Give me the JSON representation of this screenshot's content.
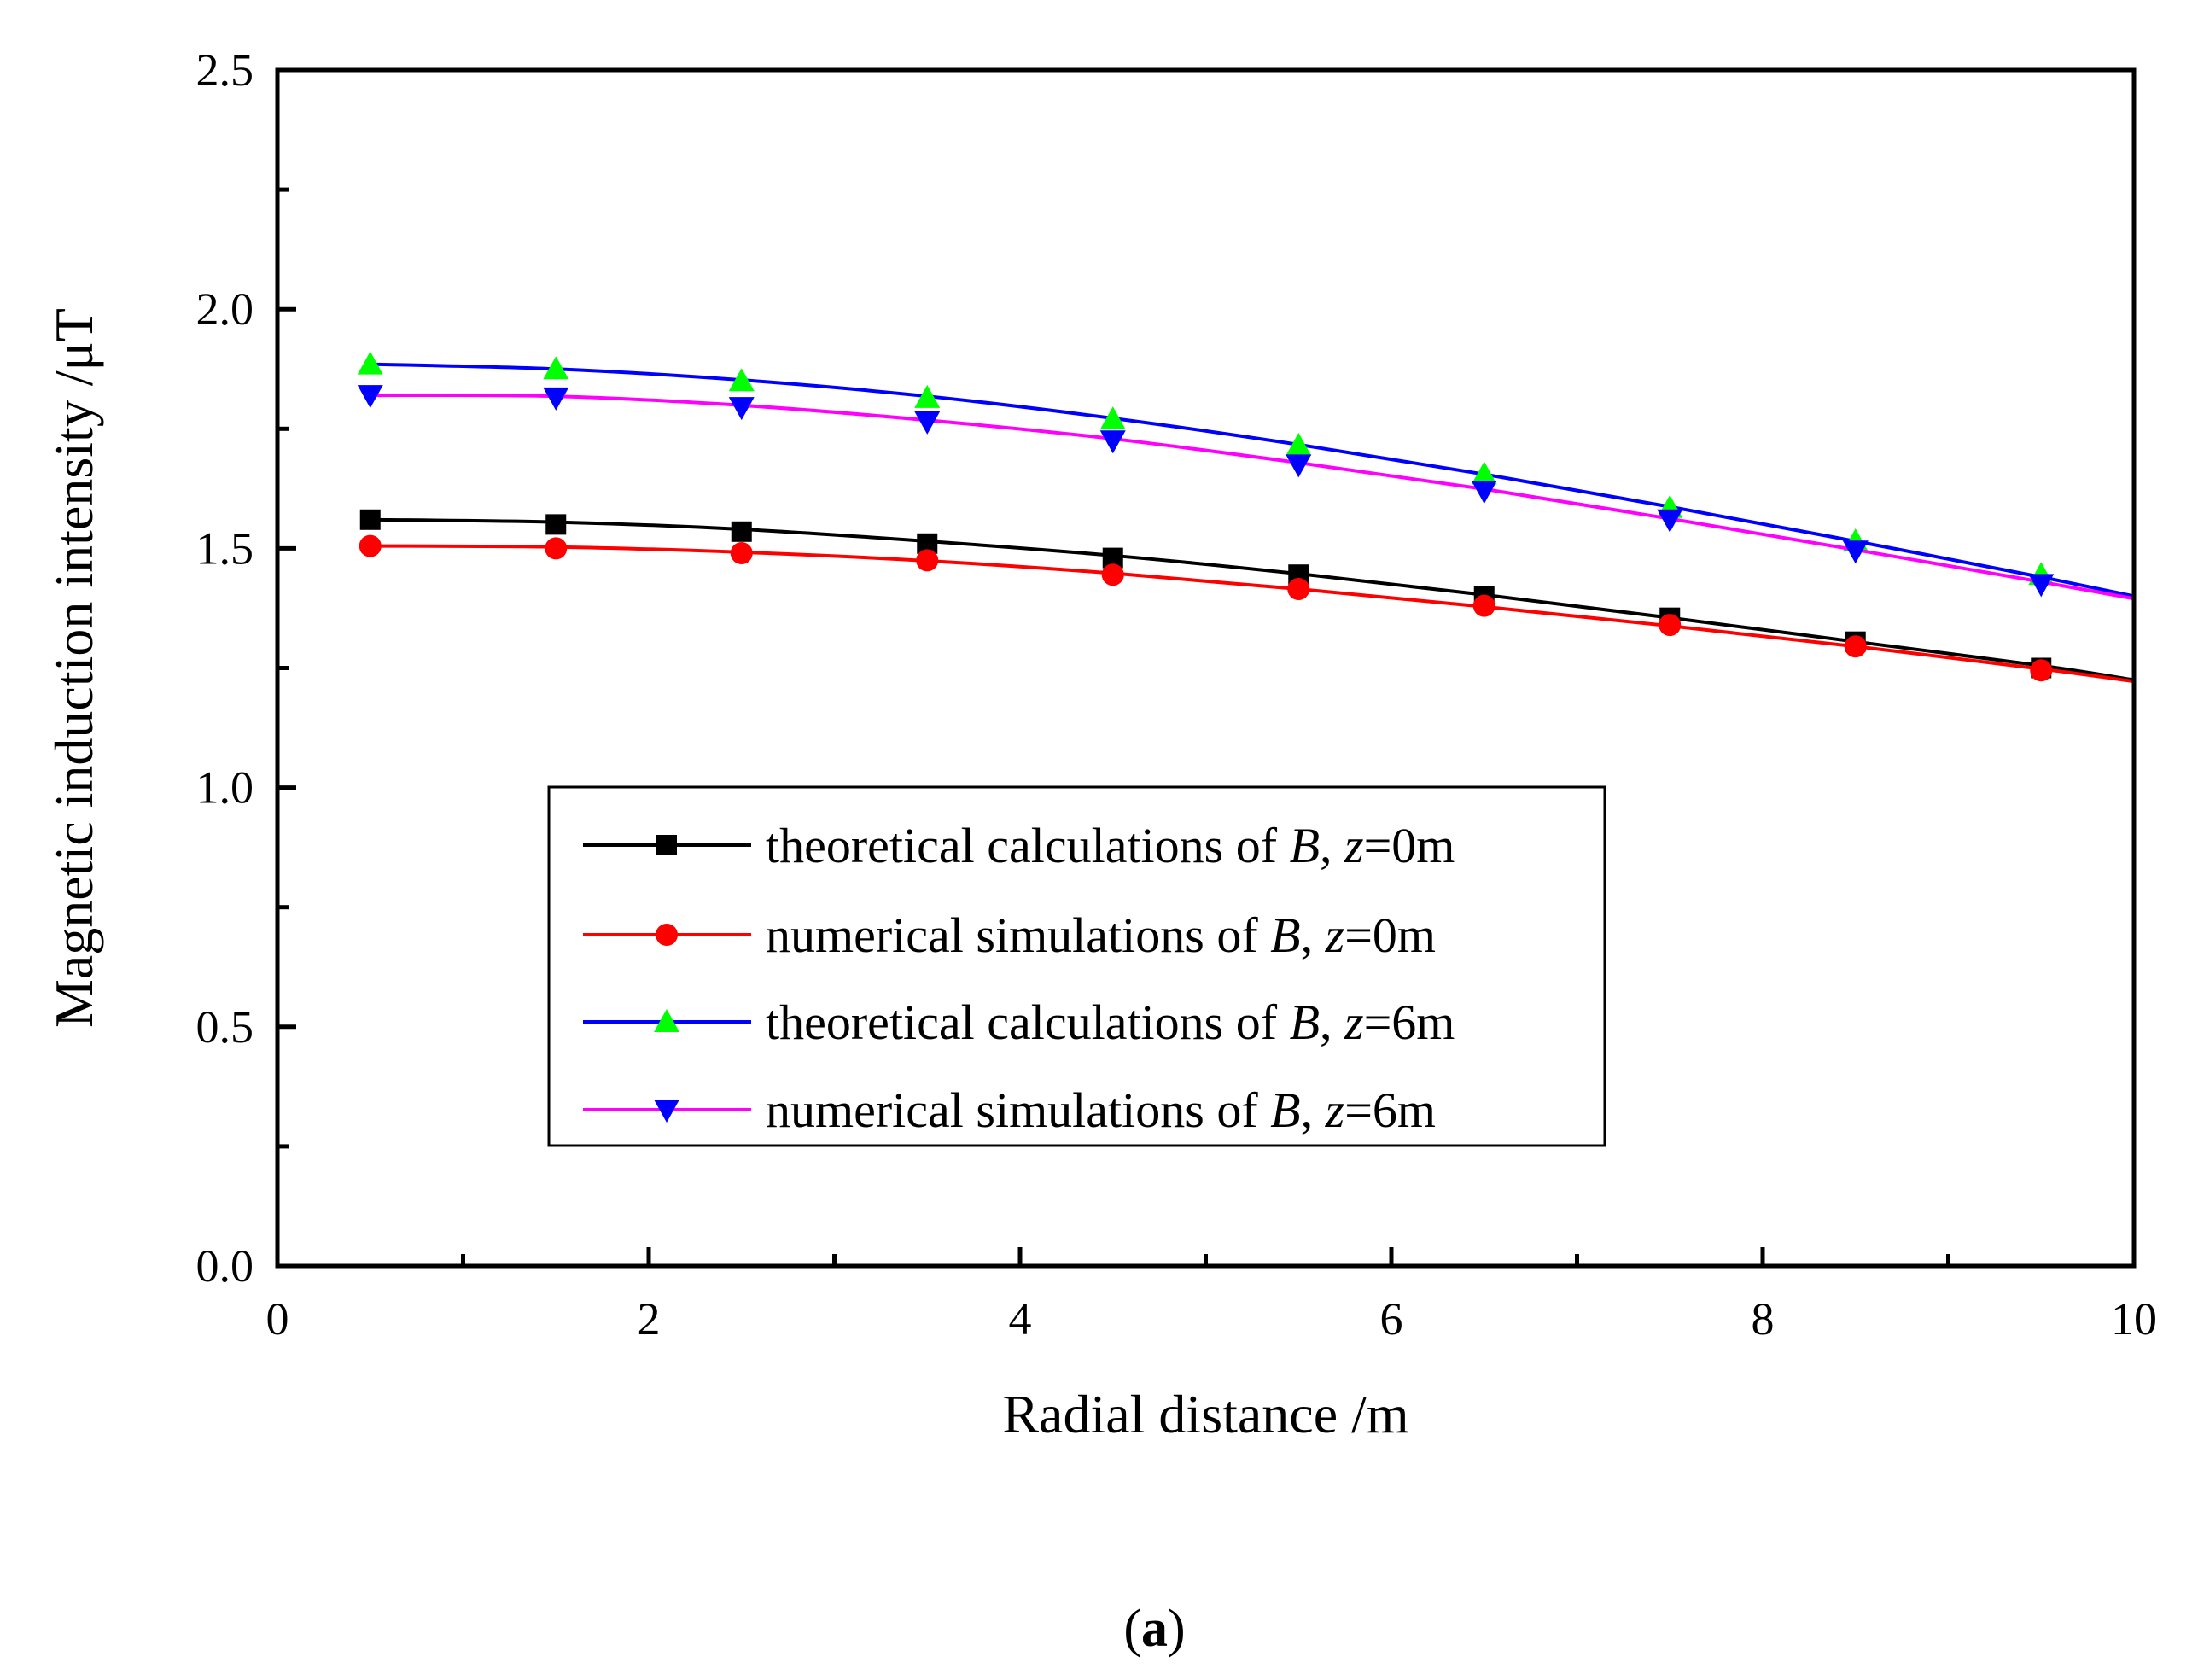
{
  "chart_data": {
    "type": "line",
    "title": "",
    "xlabel": "Radial distance /m",
    "ylabel": "Magnetic induction intensity /μT",
    "xlim": [
      0,
      10
    ],
    "ylim": [
      0,
      2.5
    ],
    "x_ticks": [
      "0",
      "2",
      "4",
      "6",
      "8",
      "10"
    ],
    "y_ticks": [
      "0.0",
      "0.5",
      "1.0",
      "1.5",
      "2.0",
      "2.5"
    ],
    "grid": false,
    "legend_position": "center-right",
    "x": [
      0.5,
      1.5,
      2.5,
      3.5,
      4.5,
      5.5,
      6.5,
      7.5,
      8.5,
      9.5
    ],
    "series": [
      {
        "name": "theoretical calculations of B, z=0m",
        "legend_parts": [
          "theoretical calculations of ",
          "B",
          ", ",
          "z",
          "=0m"
        ],
        "line_color": "#000000",
        "marker_color": "#000000",
        "marker": "square",
        "values": [
          1.56,
          1.55,
          1.535,
          1.51,
          1.48,
          1.445,
          1.4,
          1.355,
          1.305,
          1.25
        ],
        "curve": [
          [
            0.5,
            1.56
          ],
          [
            1.5,
            1.555
          ],
          [
            2.5,
            1.54
          ],
          [
            3.5,
            1.515
          ],
          [
            4.5,
            1.485
          ],
          [
            5.5,
            1.447
          ],
          [
            6.5,
            1.403
          ],
          [
            7.5,
            1.355
          ],
          [
            8.5,
            1.305
          ],
          [
            9.5,
            1.255
          ],
          [
            10,
            1.225
          ]
        ]
      },
      {
        "name": "numerical simulations of B, z=0m",
        "legend_parts": [
          "numerical simulations of ",
          "B",
          ", ",
          "z",
          "=0m"
        ],
        "line_color": "#ff0000",
        "marker_color": "#ff0000",
        "marker": "circle",
        "values": [
          1.505,
          1.5,
          1.49,
          1.475,
          1.445,
          1.415,
          1.38,
          1.34,
          1.295,
          1.245
        ],
        "curve": [
          [
            0.5,
            1.505
          ],
          [
            1.5,
            1.503
          ],
          [
            2.5,
            1.492
          ],
          [
            3.5,
            1.474
          ],
          [
            4.5,
            1.448
          ],
          [
            5.5,
            1.415
          ],
          [
            6.5,
            1.378
          ],
          [
            7.5,
            1.338
          ],
          [
            8.5,
            1.295
          ],
          [
            9.5,
            1.248
          ],
          [
            10,
            1.222
          ]
        ]
      },
      {
        "name": "theoretical calculations of B, z=6m",
        "legend_parts": [
          "theoretical calculations of ",
          "B",
          ", ",
          "z",
          "=6m"
        ],
        "line_color": "#0000ff",
        "marker_color": "#00ff00",
        "marker": "triangle-up",
        "values": [
          1.885,
          1.875,
          1.85,
          1.815,
          1.77,
          1.715,
          1.655,
          1.585,
          1.515,
          1.445
        ],
        "curve": [
          [
            0.5,
            1.885
          ],
          [
            1.5,
            1.875
          ],
          [
            2.5,
            1.852
          ],
          [
            3.5,
            1.818
          ],
          [
            4.5,
            1.772
          ],
          [
            5.5,
            1.717
          ],
          [
            6.5,
            1.655
          ],
          [
            7.5,
            1.587
          ],
          [
            8.5,
            1.515
          ],
          [
            9.5,
            1.44
          ],
          [
            10,
            1.4
          ]
        ]
      },
      {
        "name": "numerical simulations of B, z=6m",
        "legend_parts": [
          "numerical simulations of ",
          "B",
          ", ",
          "z",
          "=6m"
        ],
        "line_color": "#ff00ff",
        "marker_color": "#0000ff",
        "marker": "triangle-down",
        "values": [
          1.82,
          1.815,
          1.795,
          1.765,
          1.725,
          1.675,
          1.62,
          1.56,
          1.495,
          1.425
        ],
        "curve": [
          [
            0.5,
            1.82
          ],
          [
            1.5,
            1.818
          ],
          [
            2.5,
            1.799
          ],
          [
            3.5,
            1.768
          ],
          [
            4.5,
            1.729
          ],
          [
            5.5,
            1.679
          ],
          [
            6.5,
            1.624
          ],
          [
            7.5,
            1.562
          ],
          [
            8.5,
            1.497
          ],
          [
            9.5,
            1.43
          ],
          [
            10,
            1.395
          ]
        ]
      }
    ]
  },
  "caption": {
    "open": "(",
    "letter": "a",
    "close": ")"
  }
}
